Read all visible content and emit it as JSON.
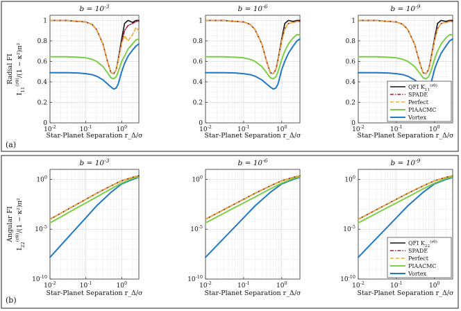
{
  "colors": {
    "QFI": "#111111",
    "SPADE": "#9b1b30",
    "Perfect": "#f0a830",
    "PIAACMC": "#7ccf45",
    "Vortex": "#1f78c8"
  },
  "chart_data": [
    {
      "panel": "(a)",
      "type": "line",
      "xscale": "log",
      "yscale": "linear",
      "xlim": [
        0.01,
        3
      ],
      "ylim": [
        0,
        1.05
      ],
      "xticks": [
        "10^-2",
        "10^-1",
        "10^0"
      ],
      "yticks": [
        "0",
        "0.2",
        "0.4",
        "0.6",
        "0.8",
        "1"
      ],
      "xlabel": "Star-Planet Separation r_Δ/σ",
      "ylabel_line1": "Radial FI",
      "ylabel_line2": "I_11^(rθ)/(1 − κ²)π²",
      "subplot_titles": [
        "b = 10^-3",
        "b = 10^-6",
        "b = 10^-9"
      ],
      "legend": [
        "QFI K_11^(rθ)",
        "SPADE",
        "Perfect",
        "PIAACMC",
        "Vortex"
      ],
      "series_keys": [
        "QFI",
        "SPADE",
        "Perfect",
        "PIAACMC",
        "Vortex"
      ],
      "x": [
        0.01,
        0.03,
        0.06,
        0.1,
        0.15,
        0.2,
        0.3,
        0.4,
        0.5,
        0.6,
        0.7,
        0.8,
        1.0,
        1.2,
        1.5,
        2.0,
        2.5,
        3.0
      ],
      "subplots": [
        {
          "QFI": [
            1,
            1,
            0.99,
            0.985,
            0.96,
            0.91,
            0.77,
            0.6,
            0.49,
            0.48,
            0.52,
            0.62,
            0.82,
            0.97,
            1.0,
            0.98,
            1.0,
            1.0
          ],
          "SPADE": [
            1,
            1,
            0.99,
            0.985,
            0.96,
            0.91,
            0.77,
            0.6,
            0.49,
            0.48,
            0.52,
            0.61,
            0.79,
            0.9,
            0.95,
            0.97,
            0.99,
            0.99
          ],
          "Perfect": [
            1,
            1,
            0.99,
            0.985,
            0.96,
            0.91,
            0.77,
            0.6,
            0.49,
            0.48,
            0.52,
            0.61,
            0.78,
            0.85,
            0.8,
            0.86,
            0.93,
            0.9
          ],
          "PIAACMC": [
            0.645,
            0.645,
            0.64,
            0.635,
            0.62,
            0.6,
            0.55,
            0.49,
            0.44,
            0.43,
            0.45,
            0.5,
            0.6,
            0.65,
            0.72,
            0.77,
            0.81,
            0.82
          ],
          "Vortex": [
            0.49,
            0.49,
            0.487,
            0.48,
            0.47,
            0.455,
            0.42,
            0.38,
            0.35,
            0.33,
            0.34,
            0.38,
            0.5,
            0.58,
            0.65,
            0.71,
            0.75,
            0.77
          ]
        },
        {
          "QFI": [
            1,
            1,
            0.99,
            0.985,
            0.96,
            0.91,
            0.77,
            0.6,
            0.49,
            0.48,
            0.52,
            0.62,
            0.82,
            0.97,
            1.0,
            0.99,
            1.0,
            1.0
          ],
          "SPADE": [
            1,
            1,
            0.99,
            0.985,
            0.96,
            0.91,
            0.77,
            0.6,
            0.49,
            0.48,
            0.52,
            0.61,
            0.8,
            0.92,
            0.97,
            0.98,
            0.99,
            0.99
          ],
          "Perfect": [
            1,
            1,
            0.99,
            0.985,
            0.96,
            0.91,
            0.77,
            0.6,
            0.49,
            0.48,
            0.52,
            0.61,
            0.8,
            0.92,
            0.97,
            0.98,
            0.99,
            0.99
          ],
          "PIAACMC": [
            0.645,
            0.645,
            0.64,
            0.635,
            0.62,
            0.6,
            0.55,
            0.49,
            0.44,
            0.43,
            0.45,
            0.5,
            0.62,
            0.7,
            0.77,
            0.83,
            0.86,
            0.86
          ],
          "Vortex": [
            0.49,
            0.49,
            0.487,
            0.48,
            0.47,
            0.455,
            0.42,
            0.38,
            0.35,
            0.33,
            0.34,
            0.38,
            0.52,
            0.6,
            0.68,
            0.75,
            0.8,
            0.82
          ]
        },
        {
          "QFI": [
            1,
            1,
            0.99,
            0.985,
            0.96,
            0.91,
            0.77,
            0.6,
            0.49,
            0.48,
            0.52,
            0.62,
            0.82,
            0.97,
            1.0,
            0.99,
            1.0,
            1.0
          ],
          "SPADE": [
            1,
            1,
            0.99,
            0.985,
            0.96,
            0.91,
            0.77,
            0.6,
            0.49,
            0.48,
            0.52,
            0.61,
            0.8,
            0.92,
            0.97,
            0.98,
            0.99,
            0.99
          ],
          "Perfect": [
            1,
            1,
            0.99,
            0.985,
            0.96,
            0.91,
            0.77,
            0.6,
            0.49,
            0.48,
            0.52,
            0.61,
            0.8,
            0.92,
            0.97,
            0.98,
            0.99,
            0.99
          ],
          "PIAACMC": [
            0.645,
            0.645,
            0.64,
            0.635,
            0.62,
            0.6,
            0.55,
            0.49,
            0.44,
            0.43,
            0.45,
            0.5,
            0.62,
            0.7,
            0.77,
            0.83,
            0.86,
            0.86
          ],
          "Vortex": [
            0.49,
            0.49,
            0.487,
            0.48,
            0.47,
            0.455,
            0.42,
            0.38,
            0.35,
            0.33,
            0.34,
            0.38,
            0.52,
            0.6,
            0.68,
            0.75,
            0.8,
            0.82
          ]
        }
      ]
    },
    {
      "panel": "(b)",
      "type": "line",
      "xscale": "log",
      "yscale": "log",
      "xlim": [
        0.01,
        3
      ],
      "ylim": [
        1e-10,
        10
      ],
      "xticks": [
        "10^-2",
        "10^-1",
        "10^0"
      ],
      "yticks": [
        "10^-10",
        "10^-5",
        "10^0"
      ],
      "xlabel": "Star-Planet Separation r_Δ/σ",
      "ylabel_line1": "Angular FI",
      "ylabel_line2": "I_22^(rθ)/(1 − κ²)π²",
      "subplot_titles": [
        "b = 10^-3",
        "b = 10^-6",
        "b = 10^-9"
      ],
      "legend": [
        "QFI K_22^(rθ)",
        "SPADE",
        "Perfect",
        "PIAACMC",
        "Vortex"
      ],
      "series_keys": [
        "QFI",
        "SPADE",
        "Perfect",
        "PIAACMC",
        "Vortex"
      ],
      "x": [
        0.01,
        0.02,
        0.05,
        0.1,
        0.2,
        0.5,
        1.0,
        2.0,
        3.0
      ],
      "subplots": [
        {
          "QFI": [
            0.0001,
            0.0004,
            0.0025,
            0.01,
            0.04,
            0.22,
            0.72,
            1.6,
            2.3
          ],
          "SPADE": [
            0.0001,
            0.0004,
            0.0025,
            0.01,
            0.04,
            0.22,
            0.72,
            1.6,
            2.3
          ],
          "Perfect": [
            0.0001,
            0.0004,
            0.0025,
            0.01,
            0.04,
            0.22,
            0.72,
            1.6,
            2.3
          ],
          "PIAACMC": [
            4.3e-05,
            0.00017,
            0.0011,
            0.0043,
            0.017,
            0.11,
            0.42,
            1.2,
            1.8
          ],
          "Vortex": [
            1.5e-08,
            2.4e-07,
            9e-06,
            0.00014,
            0.0022,
            0.05,
            0.35,
            1.0,
            1.6
          ]
        },
        {
          "QFI": [
            0.0001,
            0.0004,
            0.0025,
            0.01,
            0.04,
            0.22,
            0.72,
            1.6,
            2.3
          ],
          "SPADE": [
            0.0001,
            0.0004,
            0.0025,
            0.01,
            0.04,
            0.22,
            0.72,
            1.6,
            2.3
          ],
          "Perfect": [
            0.0001,
            0.0004,
            0.0025,
            0.01,
            0.04,
            0.22,
            0.72,
            1.6,
            2.3
          ],
          "PIAACMC": [
            4.3e-05,
            0.00017,
            0.0011,
            0.0043,
            0.017,
            0.11,
            0.42,
            1.2,
            1.8
          ],
          "Vortex": [
            1.5e-08,
            2.4e-07,
            9e-06,
            0.00014,
            0.0022,
            0.05,
            0.35,
            1.0,
            1.6
          ]
        },
        {
          "QFI": [
            0.0001,
            0.0004,
            0.0025,
            0.01,
            0.04,
            0.22,
            0.72,
            1.6,
            2.3
          ],
          "SPADE": [
            0.0001,
            0.0004,
            0.0025,
            0.01,
            0.04,
            0.22,
            0.72,
            1.6,
            2.3
          ],
          "Perfect": [
            0.0001,
            0.0004,
            0.0025,
            0.01,
            0.04,
            0.22,
            0.72,
            1.6,
            2.3
          ],
          "PIAACMC": [
            4.3e-05,
            0.00017,
            0.0011,
            0.0043,
            0.017,
            0.11,
            0.42,
            1.2,
            1.8
          ],
          "Vortex": [
            1.5e-08,
            2.4e-07,
            9e-06,
            0.00014,
            0.0022,
            0.05,
            0.35,
            1.0,
            1.6
          ]
        }
      ]
    }
  ]
}
